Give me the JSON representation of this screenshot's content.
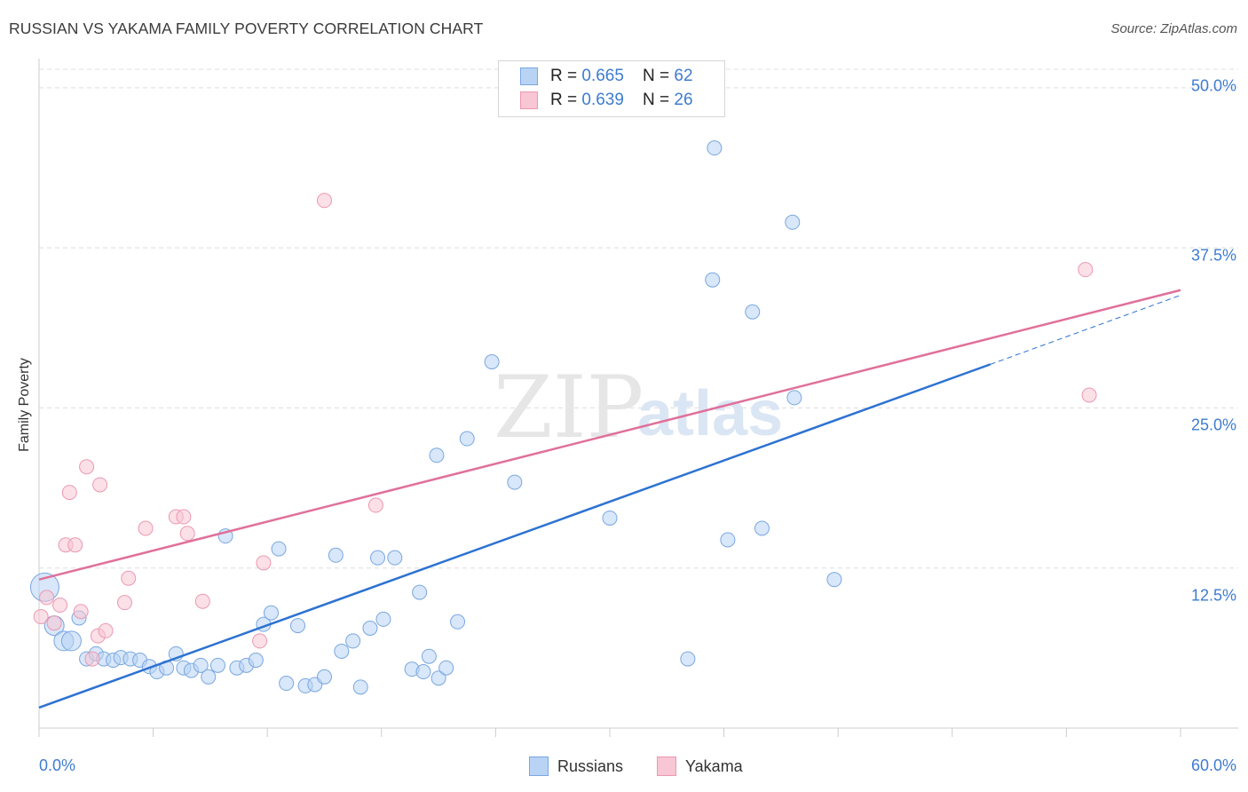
{
  "header": {
    "title": "RUSSIAN VS YAKAMA FAMILY POVERTY CORRELATION CHART",
    "source": "Source: ZipAtlas.com"
  },
  "watermark": {
    "zip": "ZIP",
    "atlas": "atlas"
  },
  "colors": {
    "russians_fill": "#b8d3f4",
    "russians_stroke": "#7aa7e0",
    "russians_line": "#2d72d2",
    "yakama_fill": "#f8c6d4",
    "yakama_stroke": "#ec98b2",
    "yakama_line": "#e0709a",
    "grid": "#dddddd",
    "tick_label": "#3e7cd0"
  },
  "stats": {
    "russians": {
      "r_label": "R = ",
      "r_value": "0.665",
      "n_label": "N = ",
      "n_value": "62"
    },
    "yakama": {
      "r_label": "R = ",
      "r_value": "0.639",
      "n_label": "N = ",
      "n_value": "26"
    }
  },
  "legend": {
    "russians": "Russians",
    "yakama": "Yakama"
  },
  "chart_data": {
    "type": "scatter",
    "title": "RUSSIAN VS YAKAMA FAMILY POVERTY CORRELATION CHART",
    "xlabel": "",
    "ylabel": "Family Poverty",
    "xlim": [
      0,
      60
    ],
    "ylim": [
      0,
      52
    ],
    "x_tick_labels": [
      "0.0%",
      "60.0%"
    ],
    "y_ticks": [
      12.5,
      25.0,
      37.5,
      50.0
    ],
    "y_tick_labels": [
      "12.5%",
      "25.0%",
      "37.5%",
      "50.0%"
    ],
    "series": [
      {
        "name": "Russians",
        "r": 0.665,
        "n": 62,
        "trend": {
          "x0": 0,
          "y0": 1.6,
          "x1": 50,
          "y1": 28.4,
          "dash_x1": 60,
          "dash_y1": 33.8
        },
        "points": [
          [
            0.3,
            11.0,
            "L"
          ],
          [
            0.8,
            8.0,
            "M"
          ],
          [
            1.3,
            6.8,
            "M"
          ],
          [
            1.7,
            6.8,
            "M"
          ],
          [
            2.1,
            8.6
          ],
          [
            2.5,
            5.4
          ],
          [
            3.0,
            5.8
          ],
          [
            3.4,
            5.4
          ],
          [
            3.9,
            5.3
          ],
          [
            4.3,
            5.5
          ],
          [
            4.8,
            5.4
          ],
          [
            5.3,
            5.3
          ],
          [
            5.8,
            4.8
          ],
          [
            6.2,
            4.4
          ],
          [
            6.7,
            4.7
          ],
          [
            7.2,
            5.8
          ],
          [
            7.6,
            4.7
          ],
          [
            8.0,
            4.5
          ],
          [
            8.5,
            4.9
          ],
          [
            8.9,
            4.0
          ],
          [
            9.4,
            4.9
          ],
          [
            9.8,
            15.0
          ],
          [
            10.4,
            4.7
          ],
          [
            10.9,
            4.9
          ],
          [
            11.4,
            5.3
          ],
          [
            11.8,
            8.1
          ],
          [
            12.2,
            9.0
          ],
          [
            12.6,
            14.0
          ],
          [
            13.0,
            3.5
          ],
          [
            13.6,
            8.0
          ],
          [
            14.0,
            3.3
          ],
          [
            14.5,
            3.4
          ],
          [
            15.0,
            4.0
          ],
          [
            15.6,
            13.5
          ],
          [
            15.9,
            6.0
          ],
          [
            16.5,
            6.8
          ],
          [
            16.9,
            3.2
          ],
          [
            17.4,
            7.8
          ],
          [
            17.8,
            13.3
          ],
          [
            18.1,
            8.5
          ],
          [
            18.7,
            13.3
          ],
          [
            19.6,
            4.6
          ],
          [
            20.0,
            10.6
          ],
          [
            20.2,
            4.4
          ],
          [
            20.5,
            5.6
          ],
          [
            21.0,
            3.9
          ],
          [
            21.4,
            4.7
          ],
          [
            22.0,
            8.3
          ],
          [
            23.8,
            28.6
          ],
          [
            25.0,
            19.2
          ],
          [
            30.0,
            16.4
          ],
          [
            34.1,
            5.4
          ],
          [
            35.5,
            45.3
          ],
          [
            35.4,
            35.0
          ],
          [
            36.2,
            14.7
          ],
          [
            37.5,
            32.5
          ],
          [
            38.0,
            15.6
          ],
          [
            39.7,
            25.8
          ],
          [
            39.6,
            39.5
          ],
          [
            41.8,
            11.6
          ],
          [
            22.5,
            22.6
          ],
          [
            20.9,
            21.3
          ]
        ]
      },
      {
        "name": "Yakama",
        "r": 0.639,
        "n": 26,
        "trend": {
          "x0": 0,
          "y0": 11.6,
          "x1": 60,
          "y1": 34.2
        },
        "points": [
          [
            0.1,
            8.7
          ],
          [
            0.4,
            10.2
          ],
          [
            0.8,
            8.2
          ],
          [
            1.1,
            9.6
          ],
          [
            1.4,
            14.3
          ],
          [
            1.6,
            18.4
          ],
          [
            1.9,
            14.3
          ],
          [
            2.2,
            9.1
          ],
          [
            2.5,
            20.4
          ],
          [
            2.8,
            5.4
          ],
          [
            3.1,
            7.2
          ],
          [
            3.2,
            19.0
          ],
          [
            3.5,
            7.6
          ],
          [
            4.5,
            9.8
          ],
          [
            4.7,
            11.7
          ],
          [
            5.6,
            15.6
          ],
          [
            7.2,
            16.5
          ],
          [
            7.6,
            16.5
          ],
          [
            7.8,
            15.2
          ],
          [
            8.6,
            9.9
          ],
          [
            11.6,
            6.8
          ],
          [
            11.8,
            12.9
          ],
          [
            15.0,
            41.2
          ],
          [
            17.7,
            17.4
          ],
          [
            55.0,
            35.8
          ],
          [
            55.2,
            26.0
          ]
        ]
      }
    ]
  }
}
